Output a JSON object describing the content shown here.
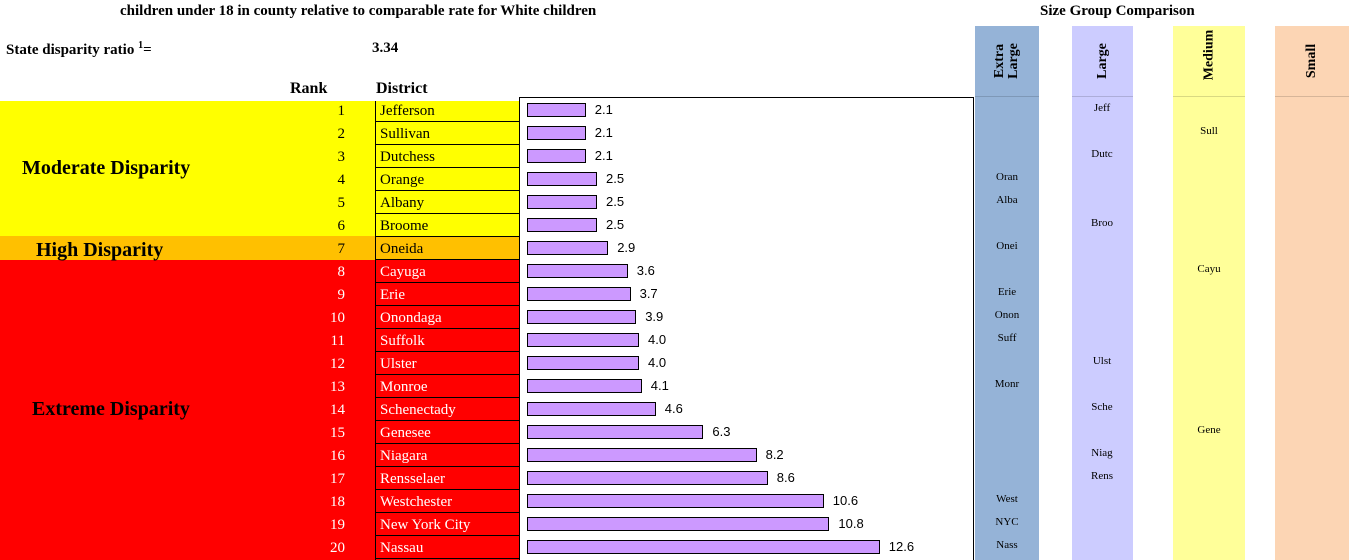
{
  "header": {
    "title": "children under 18 in county relative to comparable rate for White children",
    "size_group_title": "Size Group Comparison",
    "state_ratio_label": "State disparity ratio",
    "state_ratio_footnote": "1",
    "state_ratio_equals": "=",
    "state_ratio_value": "3.34",
    "rank_header": "Rank",
    "district_header": "District"
  },
  "bands": {
    "moderate": "Moderate Disparity",
    "high": "High Disparity",
    "extreme": "Extreme Disparity"
  },
  "colors": {
    "moderate": "#ffff00",
    "high": "#ffc000",
    "extreme": "#ff0000",
    "bar": "#cc99ff",
    "extra_large": "#95b3d7",
    "large": "#ccccff",
    "medium": "#ffff99",
    "small": "#fcd5b4"
  },
  "size_groups": {
    "extra_large": "Extra Large",
    "large": "Large",
    "medium": "Medium",
    "small": "Small"
  },
  "chart_data": {
    "type": "bar",
    "orientation": "horizontal",
    "xlim": [
      0,
      16
    ],
    "categories": [
      "Jefferson",
      "Sullivan",
      "Dutchess",
      "Orange",
      "Albany",
      "Broome",
      "Oneida",
      "Cayuga",
      "Erie",
      "Onondaga",
      "Suffolk",
      "Ulster",
      "Monroe",
      "Schenectady",
      "Genesee",
      "Niagara",
      "Rensselaer",
      "Westchester",
      "New York City",
      "Nassau"
    ],
    "ranks": [
      "1",
      "2",
      "3",
      "4",
      "5",
      "6",
      "7",
      "8",
      "9",
      "10",
      "11",
      "12",
      "13",
      "14",
      "15",
      "16",
      "17",
      "18",
      "19",
      "20"
    ],
    "values": [
      2.1,
      2.1,
      2.1,
      2.5,
      2.5,
      2.5,
      2.9,
      3.6,
      3.7,
      3.9,
      4.0,
      4.0,
      4.1,
      4.6,
      6.3,
      8.2,
      8.6,
      10.6,
      10.8,
      12.6
    ],
    "value_labels": [
      "2.1",
      "2.1",
      "2.1",
      "2.5",
      "2.5",
      "2.5",
      "2.9",
      "3.6",
      "3.7",
      "3.9",
      "4.0",
      "4.0",
      "4.1",
      "4.6",
      "6.3",
      "8.2",
      "8.6",
      "10.6",
      "10.8",
      "12.6"
    ],
    "disparity_level": [
      "moderate",
      "moderate",
      "moderate",
      "moderate",
      "moderate",
      "moderate",
      "high",
      "extreme",
      "extreme",
      "extreme",
      "extreme",
      "extreme",
      "extreme",
      "extreme",
      "extreme",
      "extreme",
      "extreme",
      "extreme",
      "extreme",
      "extreme"
    ],
    "size_group": [
      "large",
      "medium",
      "large",
      "extra_large",
      "extra_large",
      "large",
      "extra_large",
      "medium",
      "extra_large",
      "extra_large",
      "extra_large",
      "large",
      "extra_large",
      "large",
      "medium",
      "large",
      "large",
      "extra_large",
      "extra_large",
      "extra_large"
    ],
    "abbreviations": [
      "Jeff",
      "Sull",
      "Dutc",
      "Oran",
      "Alba",
      "Broo",
      "Onei",
      "Cayu",
      "Erie",
      "Onon",
      "Suff",
      "Ulst",
      "Monr",
      "Sche",
      "Gene",
      "Niag",
      "Rens",
      "West",
      "NYC",
      "Nass"
    ]
  }
}
